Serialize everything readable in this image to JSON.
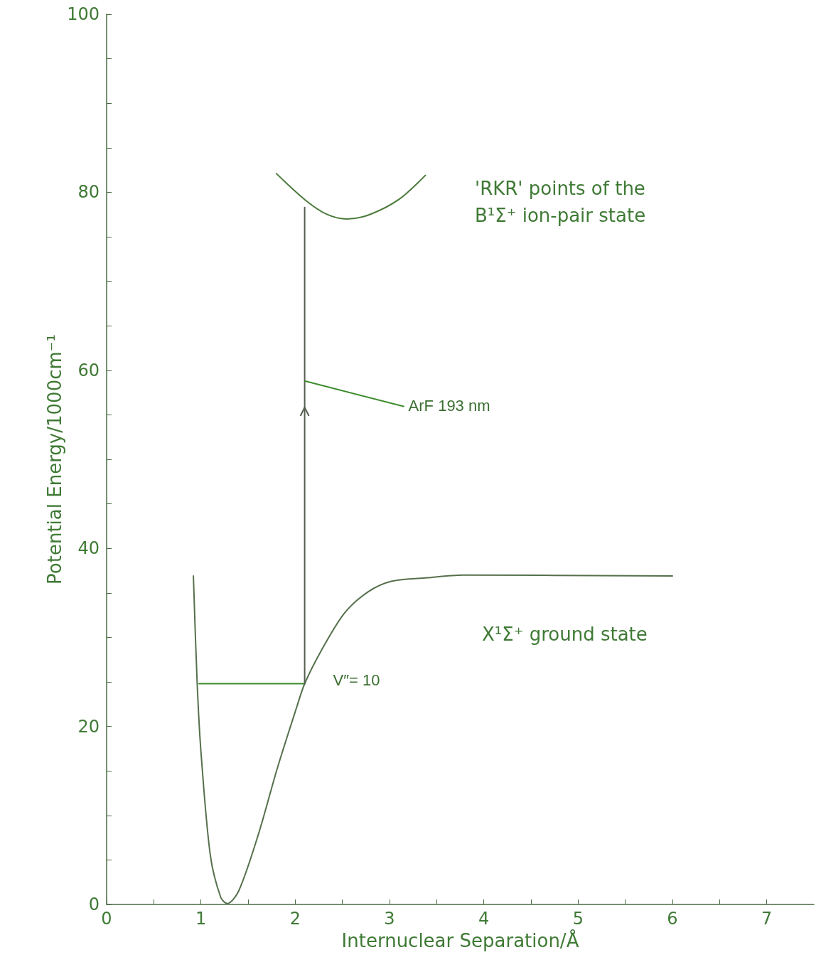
{
  "chart_data": {
    "type": "line",
    "xlabel": "Internuclear Separation/Å",
    "ylabel": "Potential Energy/1000cm⁻¹",
    "xlim": [
      0,
      7.5
    ],
    "ylim": [
      0,
      100
    ],
    "xticks": [
      0,
      {
        "value": 0.5,
        "label": null
      },
      1,
      {
        "value": 1.5,
        "label": null
      },
      2,
      {
        "value": 2.5,
        "label": null
      },
      3,
      {
        "value": 3.5,
        "label": null
      },
      4,
      {
        "value": 4.5,
        "label": null
      },
      5,
      {
        "value": 5.5,
        "label": null
      },
      6,
      {
        "value": 6.5,
        "label": null
      },
      7
    ],
    "yticks": [
      0,
      {
        "value": 5,
        "label": null
      },
      {
        "value": 10,
        "label": null
      },
      {
        "value": 15,
        "label": null
      },
      20,
      {
        "value": 25,
        "label": null
      },
      {
        "value": 30,
        "label": null
      },
      {
        "value": 35,
        "label": null
      },
      40,
      {
        "value": 45,
        "label": null
      },
      {
        "value": 50,
        "label": null
      },
      {
        "value": 55,
        "label": null
      },
      60,
      {
        "value": 65,
        "label": null
      },
      {
        "value": 70,
        "label": null
      },
      {
        "value": 75,
        "label": null
      },
      80,
      {
        "value": 85,
        "label": null
      },
      {
        "value": 90,
        "label": null
      },
      {
        "value": 95,
        "label": null
      },
      100
    ],
    "grid": false,
    "marker": "none",
    "line_style": "solid",
    "series": [
      {
        "color": "#55704c",
        "x": [
          0.92,
          0.96,
          1.0,
          1.1,
          1.21,
          1.28,
          1.4,
          1.61,
          1.81,
          2.02,
          2.1,
          2.27,
          2.52,
          2.77,
          3.02,
          3.4,
          3.78,
          6.0
        ],
        "values": [
          36.9,
          24.9,
          17.2,
          5.5,
          0.8,
          0.1,
          1.5,
          7.9,
          15.3,
          22.3,
          24.8,
          28.4,
          32.7,
          35.1,
          36.3,
          36.7,
          37.0,
          36.9
        ]
      },
      {
        "color": "#4a7a3a",
        "x": [
          1.8,
          2.11,
          2.34,
          2.55,
          2.79,
          3.1,
          3.38
        ],
        "values": [
          82.1,
          79.1,
          77.5,
          77.0,
          77.5,
          79.2,
          81.9
        ]
      },
      {
        "color": "#3c8c2c",
        "x": [
          0.98,
          2.1
        ],
        "values": [
          24.8,
          24.8
        ]
      },
      {
        "color": "#555f50",
        "x": [
          2.1,
          2.1
        ],
        "values": [
          24.8,
          78.3
        ]
      }
    ],
    "annotations": [
      "'RKR' points of the\nB¹Σ⁺ ion-pair state",
      "X¹Σ⁺ ground state",
      {
        "text": "V″= 10",
        "x": 2.1,
        "y": 24.8
      },
      {
        "text": "ArF 193 nm",
        "x": 2.1,
        "y": 58.8
      }
    ]
  }
}
